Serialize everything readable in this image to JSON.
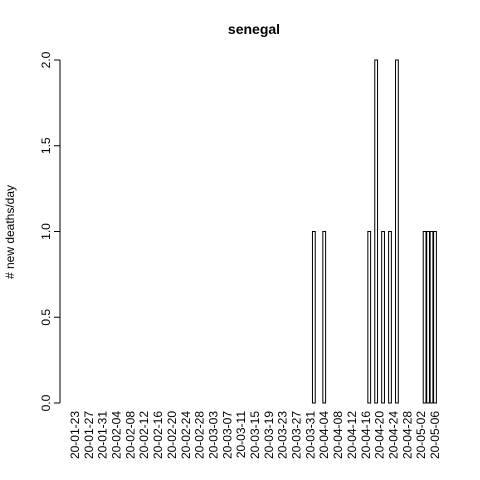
{
  "chart_data": {
    "type": "bar",
    "title": "senegal",
    "y_label": "# new deaths/day",
    "categories": [
      "20-01-23",
      null,
      null,
      null,
      "20-01-27",
      null,
      null,
      null,
      "20-01-31",
      null,
      null,
      null,
      "20-02-04",
      null,
      null,
      null,
      "20-02-08",
      null,
      null,
      null,
      "20-02-12",
      null,
      null,
      null,
      "20-02-16",
      null,
      null,
      null,
      "20-02-20",
      null,
      null,
      null,
      "20-02-24",
      null,
      null,
      null,
      "20-02-28",
      null,
      null,
      null,
      "20-03-03",
      null,
      null,
      null,
      "20-03-07",
      null,
      null,
      null,
      "20-03-11",
      null,
      null,
      null,
      "20-03-15",
      null,
      null,
      null,
      "20-03-19",
      null,
      null,
      null,
      "20-03-23",
      null,
      null,
      null,
      "20-03-27",
      null,
      null,
      null,
      "20-03-31",
      null,
      null,
      null,
      "20-04-04",
      null,
      null,
      null,
      "20-04-08",
      null,
      null,
      null,
      "20-04-12",
      null,
      null,
      null,
      "20-04-16",
      null,
      null,
      null,
      "20-04-20",
      null,
      null,
      null,
      "20-04-24",
      null,
      null,
      null,
      "20-04-28",
      null,
      null,
      null,
      "20-05-02",
      null,
      null,
      null,
      "20-05-06"
    ],
    "values": [
      0,
      0,
      0,
      0,
      0,
      0,
      0,
      0,
      0,
      0,
      0,
      0,
      0,
      0,
      0,
      0,
      0,
      0,
      0,
      0,
      0,
      0,
      0,
      0,
      0,
      0,
      0,
      0,
      0,
      0,
      0,
      0,
      0,
      0,
      0,
      0,
      0,
      0,
      0,
      0,
      0,
      0,
      0,
      0,
      0,
      0,
      0,
      0,
      0,
      0,
      0,
      0,
      0,
      0,
      0,
      0,
      0,
      0,
      0,
      0,
      0,
      0,
      0,
      0,
      0,
      0,
      0,
      0,
      0,
      1,
      0,
      0,
      1,
      0,
      0,
      0,
      0,
      0,
      0,
      0,
      0,
      0,
      0,
      0,
      0,
      1,
      0,
      2,
      0,
      1,
      0,
      1,
      0,
      2,
      0,
      0,
      0,
      0,
      0,
      0,
      0,
      1,
      1,
      1,
      1
    ],
    "color": "#ffffff",
    "ylim": [
      0,
      2
    ],
    "yticks": [
      {
        "value": 0,
        "label": "0.0"
      },
      {
        "value": 0.5,
        "label": "0.5"
      },
      {
        "value": 1,
        "label": "1.0"
      },
      {
        "value": 1.5,
        "label": "1.5"
      },
      {
        "value": 2,
        "label": "2.0"
      }
    ]
  }
}
